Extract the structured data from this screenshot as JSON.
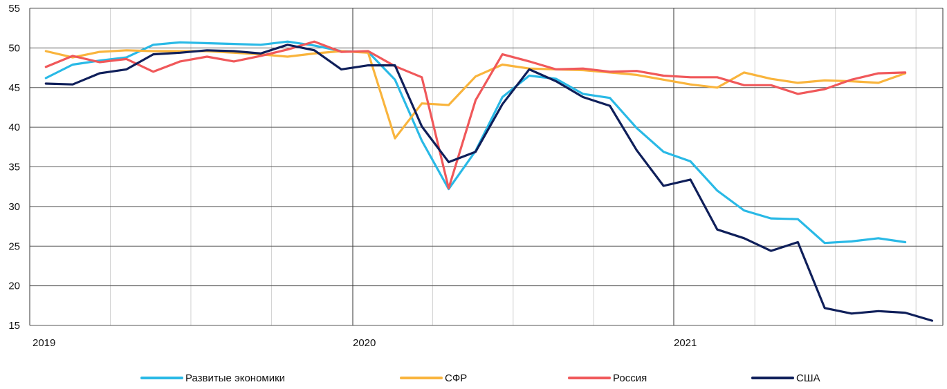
{
  "chart_data": {
    "type": "line",
    "title": "",
    "xlabel": "",
    "ylabel": "",
    "ylim": [
      15,
      55
    ],
    "y_ticks": [
      "15",
      "20",
      "25",
      "30",
      "35",
      "40",
      "45",
      "50",
      "55"
    ],
    "x_tick_labels": [
      "2019",
      "2020",
      "2021"
    ],
    "x": [
      "2019-01",
      "2019-02",
      "2019-03",
      "2019-04",
      "2019-05",
      "2019-06",
      "2019-07",
      "2019-08",
      "2019-09",
      "2019-10",
      "2019-11",
      "2019-12",
      "2020-01",
      "2020-02",
      "2020-03",
      "2020-04",
      "2020-05",
      "2020-06",
      "2020-07",
      "2020-08",
      "2020-09",
      "2020-10",
      "2020-11",
      "2020-12",
      "2021-01",
      "2021-02",
      "2021-03",
      "2021-04",
      "2021-05",
      "2021-06",
      "2021-07",
      "2021-08",
      "2021-09",
      "2021-10"
    ],
    "grid": true,
    "legend_position": "bottom",
    "series": [
      {
        "name": "Развитые экономики",
        "color": "#29B9E6",
        "values": [
          46.2,
          47.9,
          48.4,
          48.8,
          50.4,
          50.7,
          50.6,
          50.5,
          50.4,
          50.8,
          50.3,
          49.6,
          49.5,
          46.0,
          38.3,
          32.2,
          37.0,
          43.8,
          46.5,
          46.1,
          44.2,
          43.7,
          39.9,
          36.9,
          35.7,
          32.0,
          29.5,
          28.5,
          28.4,
          25.4,
          25.6,
          26.0,
          25.5,
          null
        ]
      },
      {
        "name": "СФР",
        "color": "#F9B43C",
        "values": [
          49.6,
          48.8,
          49.5,
          49.7,
          49.6,
          49.6,
          49.6,
          49.4,
          49.2,
          48.9,
          49.3,
          49.6,
          49.4,
          38.6,
          43.0,
          42.8,
          46.4,
          47.9,
          47.4,
          47.3,
          47.2,
          46.9,
          46.6,
          46.0,
          45.4,
          45.0,
          46.9,
          46.1,
          45.6,
          45.9,
          45.8,
          45.6,
          46.8,
          null
        ]
      },
      {
        "name": "Россия",
        "color": "#F0585A",
        "values": [
          47.6,
          49.0,
          48.2,
          48.6,
          47.0,
          48.3,
          48.9,
          48.3,
          49.0,
          49.8,
          50.8,
          49.5,
          49.6,
          47.7,
          46.3,
          32.3,
          43.4,
          49.2,
          48.3,
          47.3,
          47.4,
          47.0,
          47.1,
          46.5,
          46.3,
          46.3,
          45.3,
          45.3,
          44.2,
          44.8,
          46.0,
          46.8,
          46.9,
          null
        ]
      },
      {
        "name": "США",
        "color": "#0F1F5A",
        "values": [
          45.5,
          45.4,
          46.8,
          47.3,
          49.2,
          49.4,
          49.7,
          49.6,
          49.3,
          50.4,
          49.7,
          47.3,
          47.8,
          47.8,
          40.1,
          35.6,
          36.9,
          42.9,
          47.3,
          45.8,
          43.8,
          42.7,
          37.1,
          32.6,
          33.4,
          27.1,
          26.0,
          24.4,
          25.5,
          17.2,
          16.5,
          16.8,
          16.6,
          15.6
        ]
      }
    ]
  }
}
